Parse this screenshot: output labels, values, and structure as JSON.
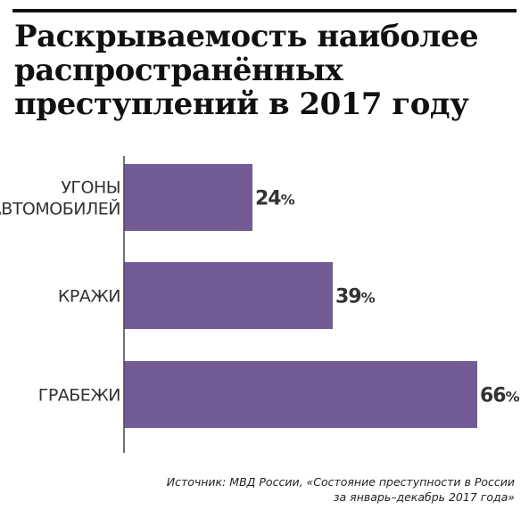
{
  "title_lines": [
    "Раскрываемость наиболее",
    "распространённых",
    "преступлений в 2017 году"
  ],
  "source_lines": [
    "Источник: МВД России, «Состояние преступности в России",
    "за январь–декабрь 2017 года»"
  ],
  "colors": {
    "bar": "#735c96",
    "axis": "#444444",
    "text": "#333333"
  },
  "chart_data": {
    "type": "bar",
    "orientation": "horizontal",
    "title": "Раскрываемость наиболее распространённых преступлений в 2017 году",
    "categories": [
      [
        "УГОНЫ",
        "АВТОМОБИЛЕЙ"
      ],
      [
        "КРАЖИ"
      ],
      [
        "ГРАБЕЖИ"
      ]
    ],
    "values": [
      24,
      39,
      66
    ],
    "value_labels": [
      "24%",
      "39%",
      "66%"
    ],
    "xlim": [
      0,
      66
    ],
    "unit": "%",
    "grid": false,
    "legend": false
  }
}
